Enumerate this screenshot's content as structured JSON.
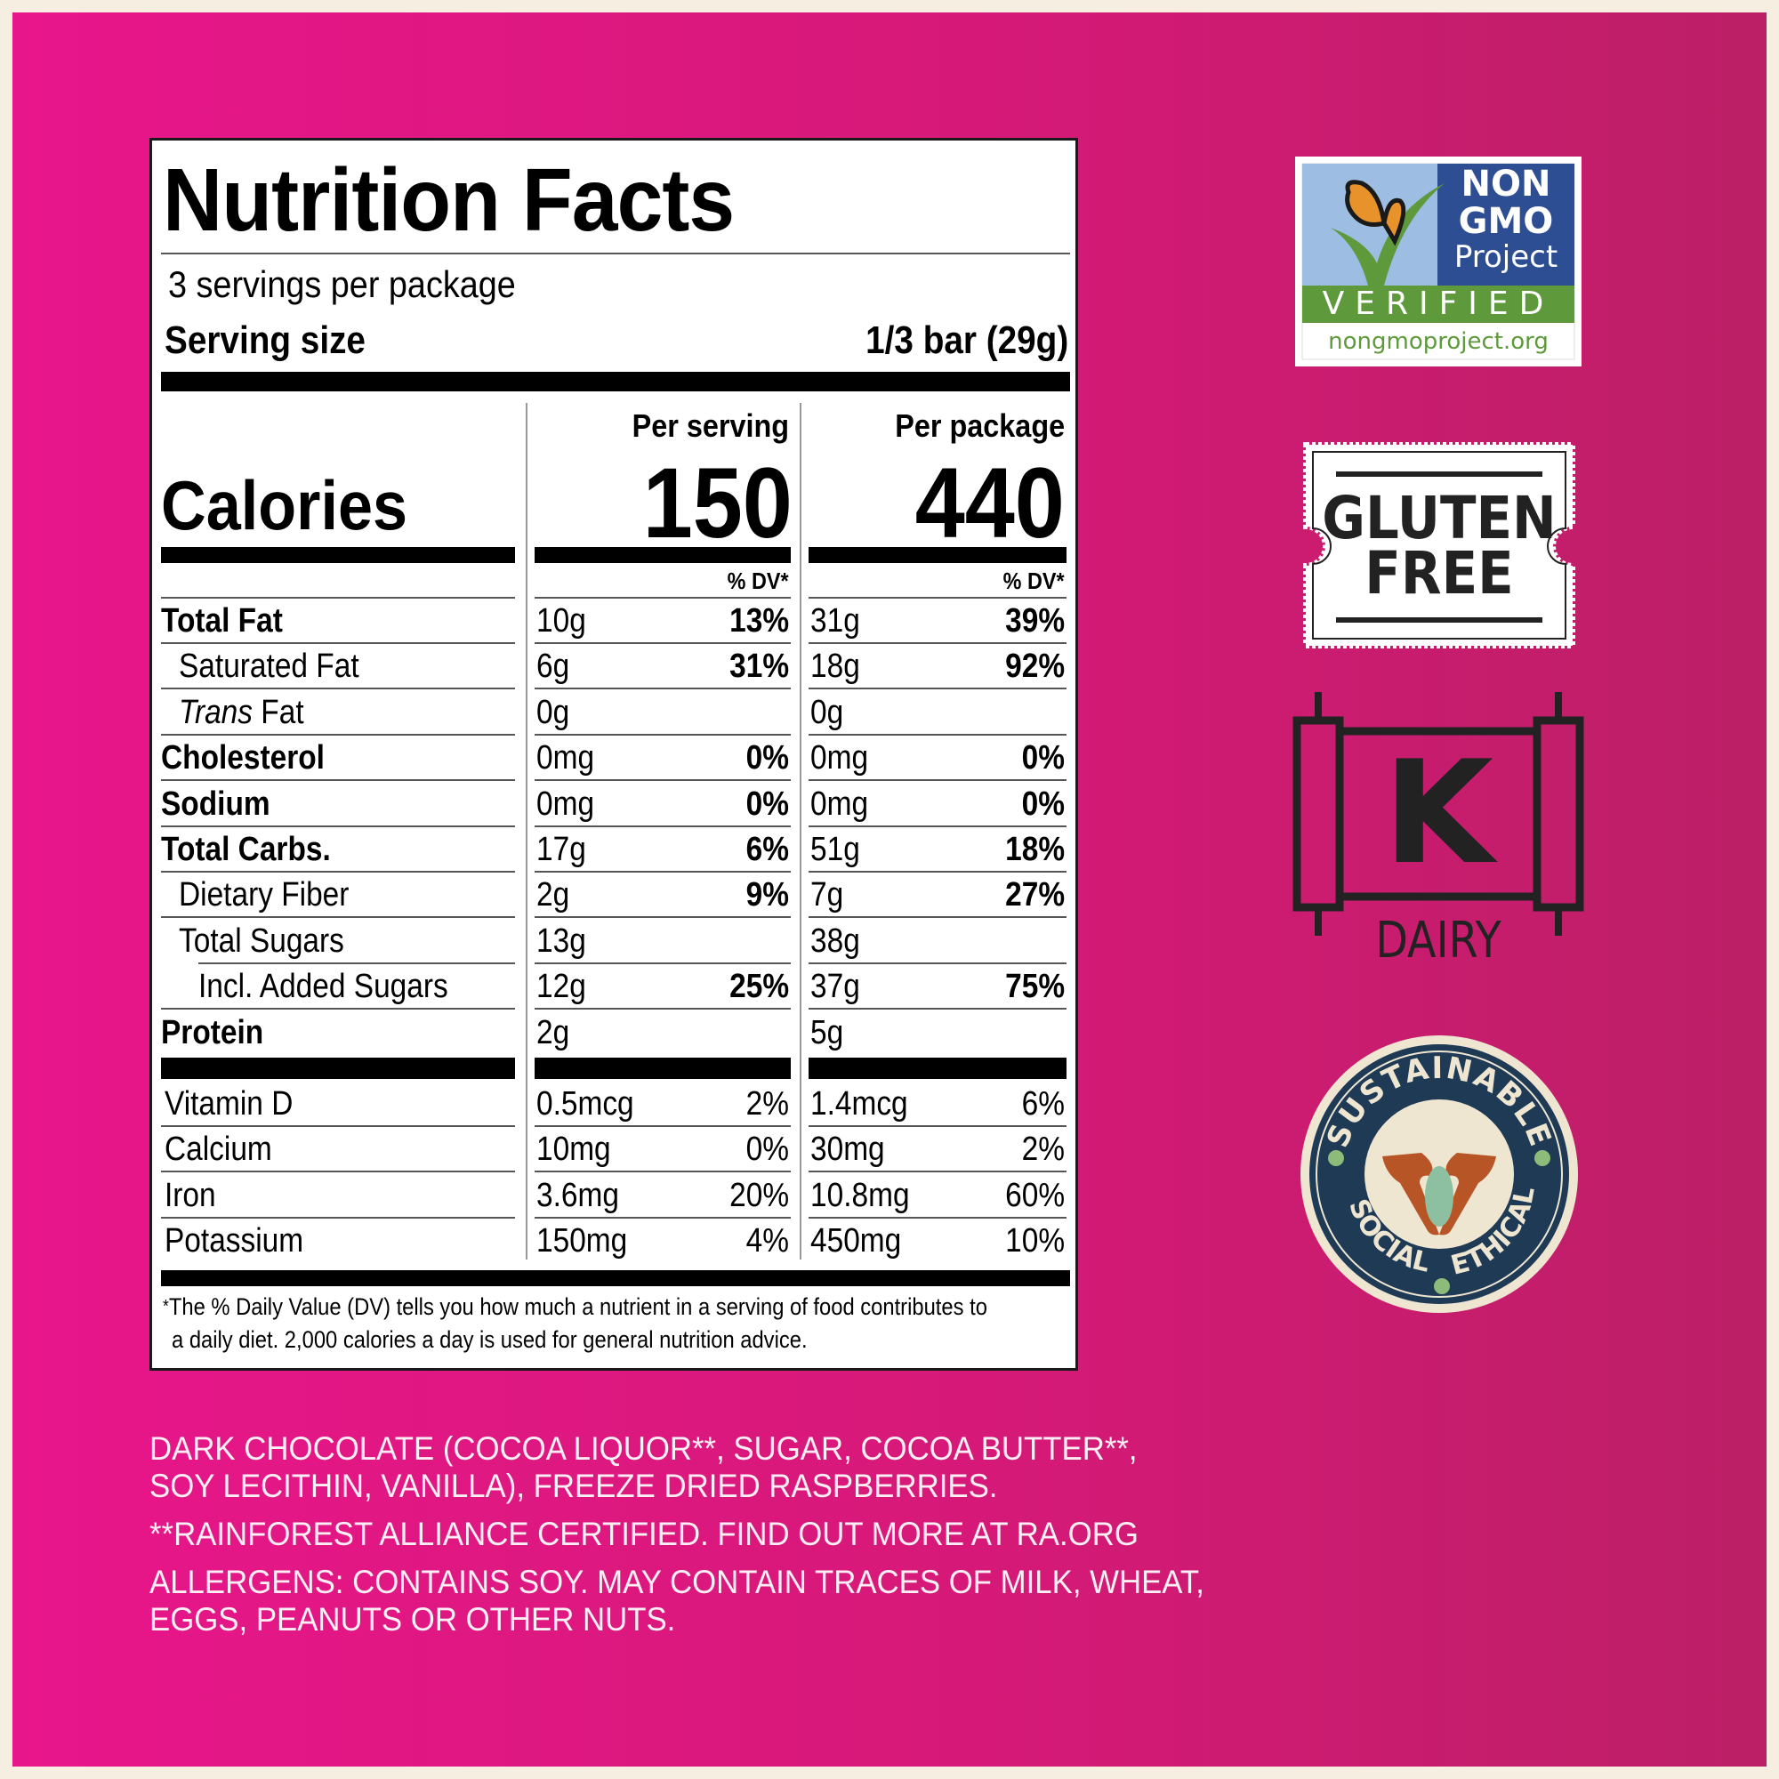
{
  "nutrition_facts": {
    "title": "Nutrition Facts",
    "servings_per_package": "3 servings per package",
    "serving_size_label": "Serving size",
    "serving_size_value": "1/3 bar (29g)",
    "calories_label": "Calories",
    "per_serving_label": "Per serving",
    "per_package_label": "Per package",
    "calories_per_serving": "150",
    "calories_per_package": "440",
    "dv_header": "% DV*",
    "nutrients": [
      {
        "name": "Total Fat",
        "bold": true,
        "indent": 0,
        "serving_amount": "10g",
        "serving_dv": "13%",
        "package_amount": "31g",
        "package_dv": "39%"
      },
      {
        "name": "Saturated Fat",
        "bold": false,
        "indent": 1,
        "serving_amount": "6g",
        "serving_dv": "31%",
        "package_amount": "18g",
        "package_dv": "92%"
      },
      {
        "name_italic": "Trans",
        "name": " Fat",
        "bold": false,
        "indent": 1,
        "serving_amount": "0g",
        "serving_dv": "",
        "package_amount": "0g",
        "package_dv": ""
      },
      {
        "name": "Cholesterol",
        "bold": true,
        "indent": 0,
        "serving_amount": "0mg",
        "serving_dv": "0%",
        "package_amount": "0mg",
        "package_dv": "0%"
      },
      {
        "name": "Sodium",
        "bold": true,
        "indent": 0,
        "serving_amount": "0mg",
        "serving_dv": "0%",
        "package_amount": "0mg",
        "package_dv": "0%"
      },
      {
        "name": "Total Carbs.",
        "bold": true,
        "indent": 0,
        "serving_amount": "17g",
        "serving_dv": "6%",
        "package_amount": "51g",
        "package_dv": "18%"
      },
      {
        "name": "Dietary Fiber",
        "bold": false,
        "indent": 1,
        "serving_amount": "2g",
        "serving_dv": "9%",
        "package_amount": "7g",
        "package_dv": "27%"
      },
      {
        "name": "Total Sugars",
        "bold": false,
        "indent": 1,
        "serving_amount": "13g",
        "serving_dv": "",
        "package_amount": "38g",
        "package_dv": ""
      },
      {
        "name": "Incl. Added Sugars",
        "bold": false,
        "indent": 2,
        "serving_amount": "12g",
        "serving_dv": "25%",
        "package_amount": "37g",
        "package_dv": "75%"
      },
      {
        "name": "Protein",
        "bold": true,
        "indent": 0,
        "serving_amount": "2g",
        "serving_dv": "",
        "package_amount": "5g",
        "package_dv": ""
      }
    ],
    "vitamins": [
      {
        "name": "Vitamin D",
        "serving_amount": "0.5mcg",
        "serving_dv": "2%",
        "package_amount": "1.4mcg",
        "package_dv": "6%"
      },
      {
        "name": "Calcium",
        "serving_amount": "10mg",
        "serving_dv": "0%",
        "package_amount": "30mg",
        "package_dv": "2%"
      },
      {
        "name": "Iron",
        "serving_amount": "3.6mg",
        "serving_dv": "20%",
        "package_amount": "10.8mg",
        "package_dv": "60%"
      },
      {
        "name": "Potassium",
        "serving_amount": "150mg",
        "serving_dv": "4%",
        "package_amount": "450mg",
        "package_dv": "10%"
      }
    ],
    "footnote_line1": "The % Daily Value (DV) tells you how much a nutrient in a serving of food contributes to",
    "footnote_line2": "a daily diet. 2,000 calories a day is used for general nutrition advice.",
    "footnote_mark": "*"
  },
  "ingredients": {
    "line1": "DARK CHOCOLATE (COCOA LIQUOR**, SUGAR, COCOA BUTTER**,",
    "line2": "SOY LECITHIN, VANILLA), FREEZE DRIED RASPBERRIES.",
    "certification": "**RAINFOREST ALLIANCE CERTIFIED. FIND OUT MORE AT RA.ORG",
    "allergens_line1": "ALLERGENS: CONTAINS SOY. MAY CONTAIN TRACES OF MILK, WHEAT,",
    "allergens_line2": "EGGS, PEANUTS OR OTHER NUTS."
  },
  "badges": {
    "non_gmo": {
      "line1": "NON",
      "line2": "GMO",
      "line3": "Project",
      "verified": "VERIFIED",
      "url": "nongmoproject.org"
    },
    "gluten_free": {
      "line1": "GLUTEN",
      "line2": "FREE"
    },
    "kosher": {
      "letter": "K",
      "label": "DAIRY"
    },
    "sustainable": {
      "top": "SUSTAINABLE",
      "left": "SOCIAL",
      "right": "ETHICAL"
    }
  },
  "colors": {
    "background_left": "#E8168B",
    "background_right": "#BC1F66",
    "frame": "#F6EEE0",
    "label_bg": "#FFFFFF",
    "ingredient_text": "#FBEFF4",
    "nongmo_blue": "#2E4E94",
    "nongmo_sky": "#9DBDE3",
    "nongmo_green": "#5E9A3C",
    "butterfly_orange": "#E8922B",
    "seal_navy": "#1E3A55",
    "seal_cream": "#EFE6D2",
    "hands": "#B85526",
    "pod_green": "#8CC0A0",
    "dot_green": "#8DBB7A"
  }
}
